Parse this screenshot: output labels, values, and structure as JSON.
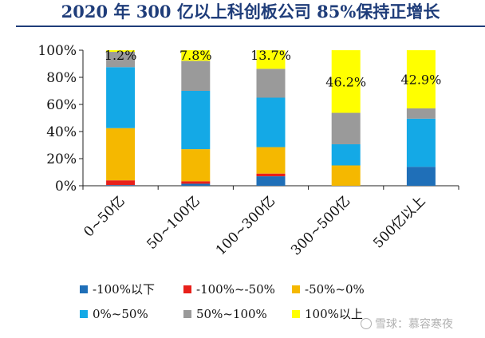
{
  "header": {
    "title": "2020 年 300 亿以上科创板公司 85%保持正增长"
  },
  "chart_data": {
    "type": "bar",
    "stacked": true,
    "title": "2020 年 300 亿以上科创板公司 85%保持正增长",
    "categories": [
      "0~50亿",
      "50~100亿",
      "100~300亿",
      "300~500亿",
      "500亿以上"
    ],
    "ylim": [
      0,
      100
    ],
    "yticks": [
      "0%",
      "20%",
      "40%",
      "60%",
      "80%",
      "100%"
    ],
    "grid": false,
    "legend_position": "bottom",
    "series": [
      {
        "name": "-100%以下",
        "color": "#1f6fb8",
        "values": [
          0.5,
          1.5,
          7.0,
          0,
          14.0
        ]
      },
      {
        "name": "-100%~-50%",
        "color": "#e8201a",
        "values": [
          3.5,
          1.8,
          2.0,
          0,
          0
        ]
      },
      {
        "name": "-50%~0%",
        "color": "#f5b800",
        "values": [
          38.5,
          23.7,
          19.5,
          15.0,
          0
        ]
      },
      {
        "name": "0%~50%",
        "color": "#14a9e6",
        "values": [
          45.0,
          43.0,
          36.5,
          15.6,
          35.5
        ]
      },
      {
        "name": "50%~100%",
        "color": "#9a9a9a",
        "values": [
          11.3,
          22.2,
          21.3,
          23.2,
          7.6
        ]
      },
      {
        "name": "100%以上",
        "color": "#ffff00",
        "values": [
          1.2,
          7.8,
          13.7,
          46.2,
          42.9
        ]
      }
    ],
    "data_labels": [
      "1.2%",
      "7.8%",
      "13.7%",
      "46.2%",
      "42.9%"
    ]
  },
  "watermark": {
    "text": "雪球：慕容寒夜"
  }
}
